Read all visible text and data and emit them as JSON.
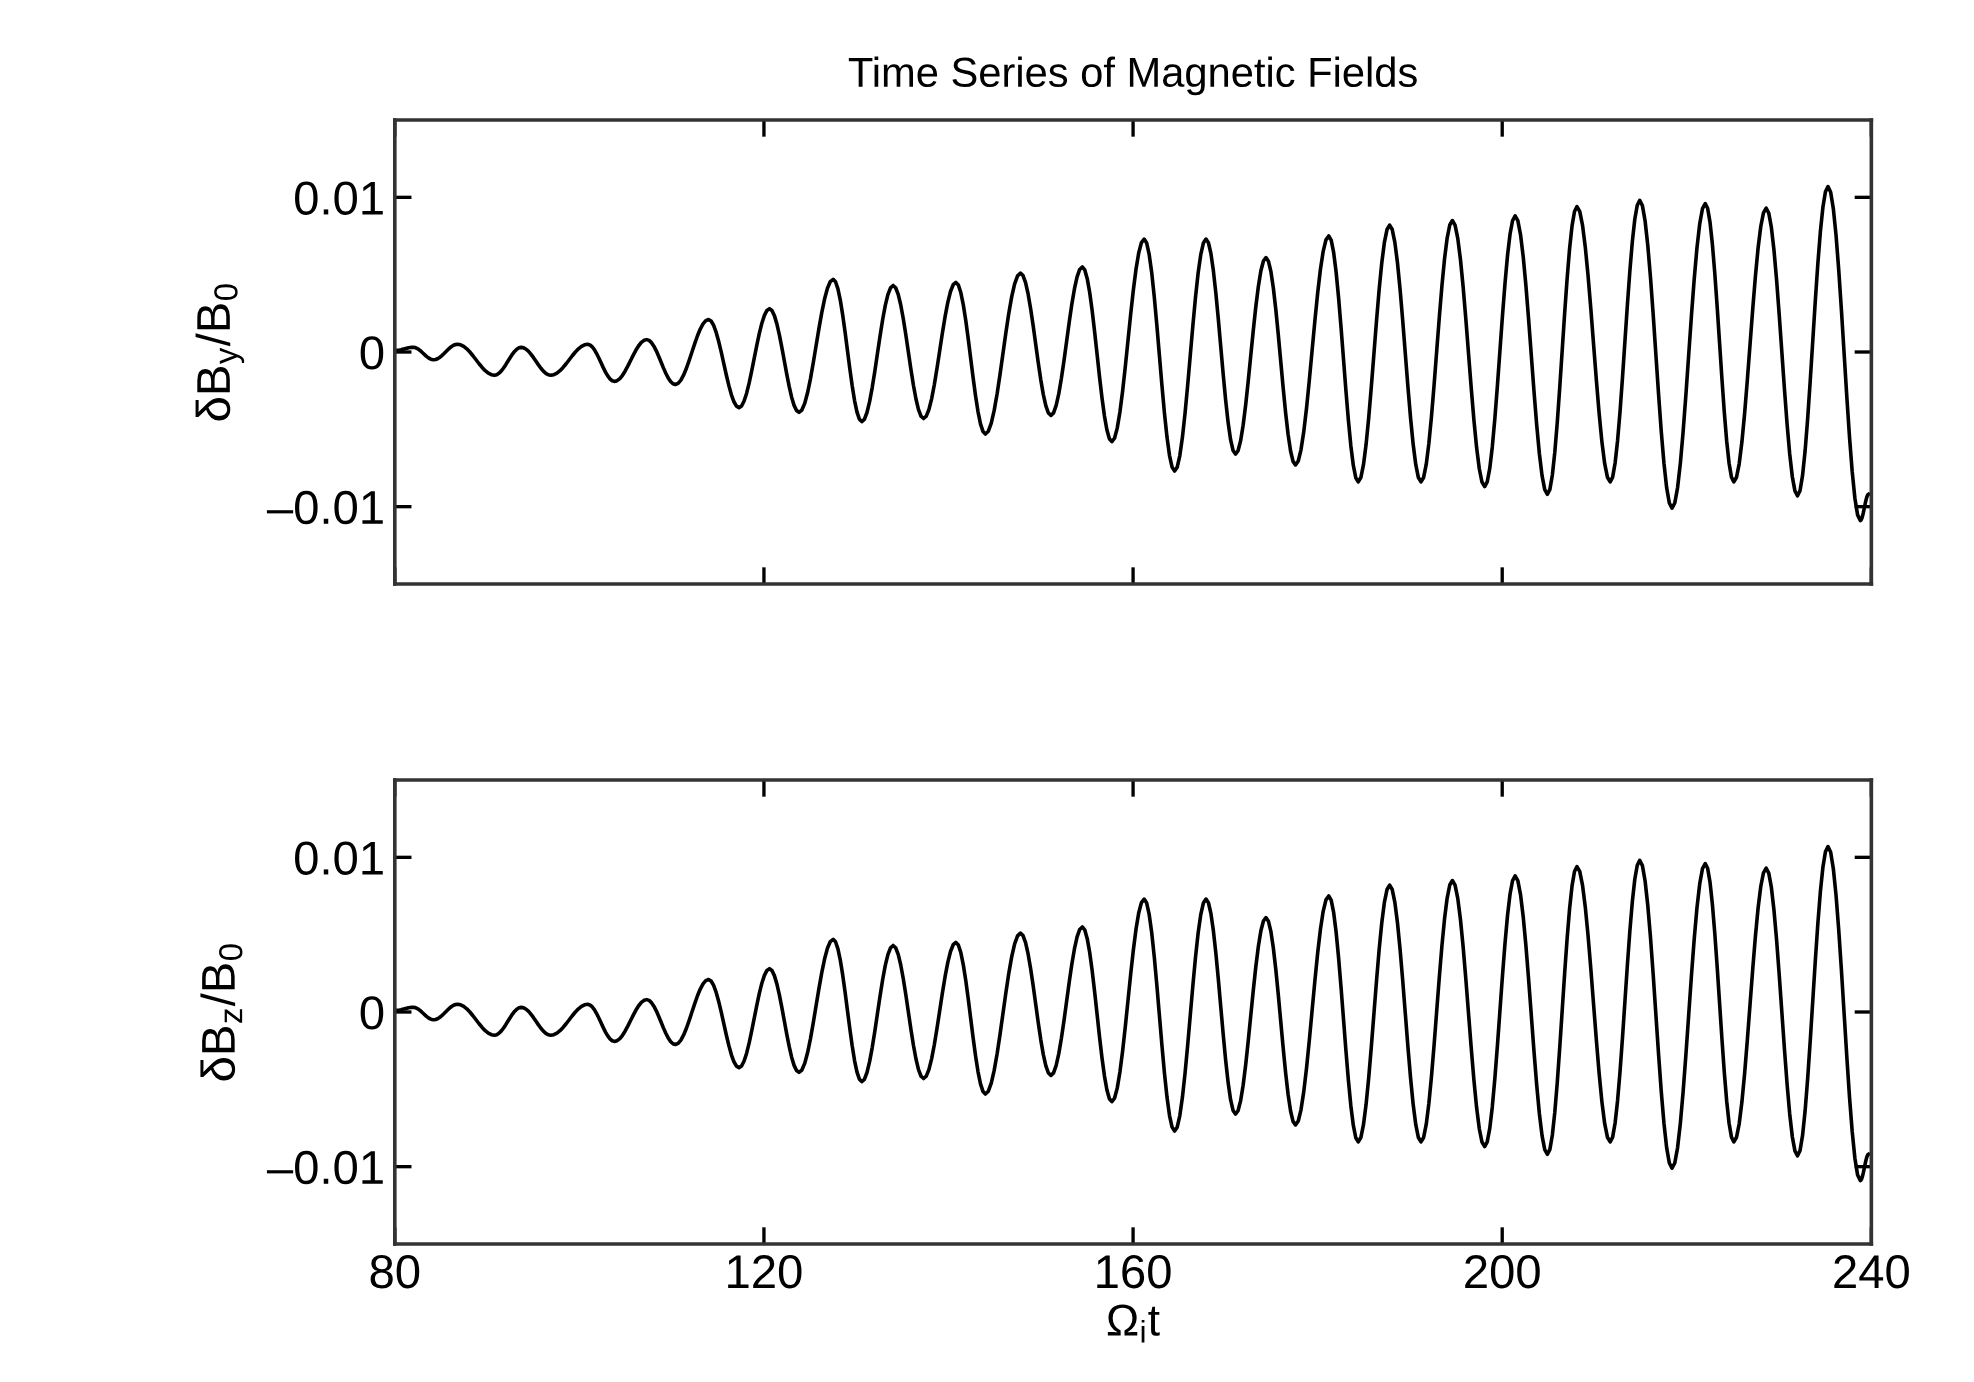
{
  "chart_data": [
    {
      "type": "line",
      "title": "Time Series of Magnetic Fields",
      "ylabel": "δB$_{y}$/B$_{0}$",
      "x": [
        80,
        82.0,
        84.2,
        86.8,
        90.8,
        93.7,
        96.9,
        100.9,
        103.8,
        107.3,
        110.4,
        114.0,
        117.3,
        120.6,
        123.8,
        127.5,
        130.6,
        134.0,
        137.3,
        140.8,
        144.0,
        147.8,
        151.1,
        154.5,
        157.7,
        161.2,
        164.5,
        167.9,
        171.1,
        174.4,
        177.6,
        181.2,
        184.4,
        187.8,
        191.2,
        194.6,
        198.1,
        201.4,
        204.9,
        208.1,
        211.7,
        214.9,
        218.4,
        222.0,
        225.1,
        228.6,
        232.0,
        235.3,
        238.8,
        239.7
      ],
      "series": [
        {
          "color": "#000000",
          "values": [
            0.0001,
            0.0003,
            -0.0005,
            0.0005,
            -0.0015,
            0.0003,
            -0.0015,
            0.0005,
            -0.0019,
            0.0008,
            -0.0021,
            0.0021,
            -0.0036,
            0.0028,
            -0.0039,
            0.0047,
            -0.0045,
            0.0043,
            -0.0043,
            0.0045,
            -0.0053,
            0.0051,
            -0.0041,
            0.0055,
            -0.0058,
            0.0073,
            -0.0077,
            0.0073,
            -0.0066,
            0.0061,
            -0.0073,
            0.0075,
            -0.0084,
            0.0082,
            -0.0084,
            0.0085,
            -0.0087,
            0.0088,
            -0.0092,
            0.0094,
            -0.0084,
            0.0098,
            -0.0101,
            0.0096,
            -0.0084,
            0.0093,
            -0.0093,
            0.0107,
            -0.0109,
            -0.0092
          ]
        }
      ],
      "xlim": [
        80,
        240
      ],
      "ylim": [
        -0.015,
        0.015
      ],
      "xticks": [
        80,
        120,
        160,
        200,
        240
      ],
      "yticks": [
        {
          "value": -0.01,
          "label": "–0.01"
        },
        0,
        0.01
      ],
      "tick_labels": "y"
    },
    {
      "type": "line",
      "ylabel": "δB$_{z}$/B$_{0}$",
      "xlabel": "Ω$_{i}$t",
      "x": [
        80,
        82.0,
        84.2,
        86.8,
        90.8,
        93.7,
        96.9,
        100.9,
        103.8,
        107.3,
        110.4,
        114.0,
        117.3,
        120.6,
        123.8,
        127.5,
        130.6,
        134.0,
        137.3,
        140.8,
        144.0,
        147.8,
        151.1,
        154.5,
        157.7,
        161.2,
        164.5,
        167.9,
        171.1,
        174.4,
        177.6,
        181.2,
        184.4,
        187.8,
        191.2,
        194.6,
        198.1,
        201.4,
        204.9,
        208.1,
        211.7,
        214.9,
        218.4,
        222.0,
        225.1,
        228.6,
        232.0,
        235.3,
        238.8,
        239.7
      ],
      "series": [
        {
          "color": "#000000",
          "values": [
            0.0001,
            0.0003,
            -0.0005,
            0.0005,
            -0.0015,
            0.0003,
            -0.0015,
            0.0005,
            -0.0019,
            0.0008,
            -0.0021,
            0.0021,
            -0.0036,
            0.0028,
            -0.0039,
            0.0047,
            -0.0045,
            0.0043,
            -0.0043,
            0.0045,
            -0.0053,
            0.0051,
            -0.0041,
            0.0055,
            -0.0058,
            0.0073,
            -0.0077,
            0.0073,
            -0.0066,
            0.0061,
            -0.0073,
            0.0075,
            -0.0084,
            0.0082,
            -0.0084,
            0.0085,
            -0.0087,
            0.0088,
            -0.0092,
            0.0094,
            -0.0084,
            0.0098,
            -0.0101,
            0.0096,
            -0.0084,
            0.0093,
            -0.0093,
            0.0107,
            -0.0109,
            -0.0092
          ]
        }
      ],
      "xlim": [
        80,
        240
      ],
      "ylim": [
        -0.015,
        0.015
      ],
      "xticks": [
        80,
        120,
        160,
        200,
        240
      ],
      "yticks": [
        {
          "value": -0.01,
          "label": "–0.01"
        },
        0,
        0.01
      ]
    }
  ]
}
